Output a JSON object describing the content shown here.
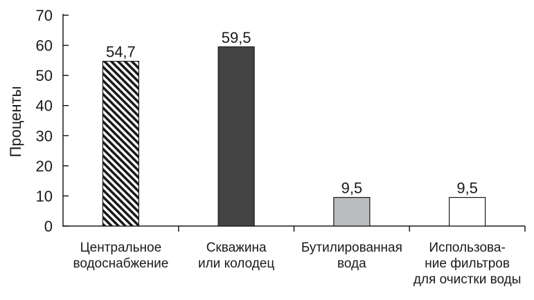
{
  "chart_data": {
    "type": "bar",
    "title": "",
    "xlabel": "",
    "ylabel": "Проценты",
    "ylim": [
      0,
      70
    ],
    "yticks": [
      0,
      10,
      20,
      30,
      40,
      50,
      60,
      70
    ],
    "grid": false,
    "categories": [
      [
        "Центральное",
        "водоснабжение"
      ],
      [
        "Скважина",
        "или колодец"
      ],
      [
        "Бутилированная",
        "вода"
      ],
      [
        "Использова-",
        "ние фильтров",
        "для очистки воды"
      ]
    ],
    "values": [
      54.7,
      59.5,
      9.5,
      9.5
    ],
    "data_labels": [
      "54,7",
      "59,5",
      "9,5",
      "9,5"
    ],
    "bar_styles": [
      "hatched",
      "#444444",
      "#bbbcbe",
      "#ffffff"
    ]
  }
}
